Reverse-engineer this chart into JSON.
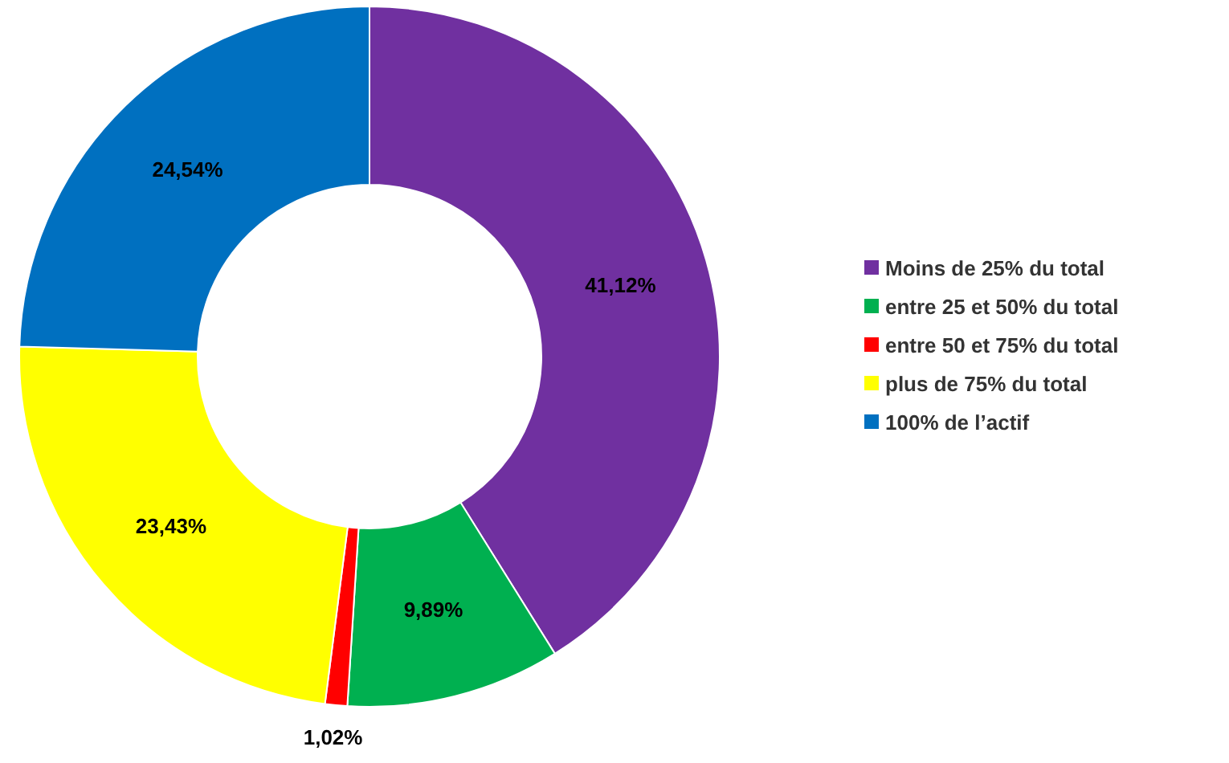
{
  "chart_data": {
    "type": "donut",
    "categories": [
      "Moins de 25% du total",
      "entre 25 et 50% du total",
      "entre 50 et 75% du total",
      "plus de 75% du total",
      "100% de l’actif"
    ],
    "values": [
      41.12,
      9.89,
      1.02,
      23.43,
      24.54
    ],
    "colors": [
      "#7030a0",
      "#00b050",
      "#ff0000",
      "#ffff00",
      "#0070c0"
    ],
    "value_labels": [
      "41,12%",
      "9,89%",
      "1,02%",
      "23,43%",
      "24,54%"
    ],
    "legend": "right"
  }
}
